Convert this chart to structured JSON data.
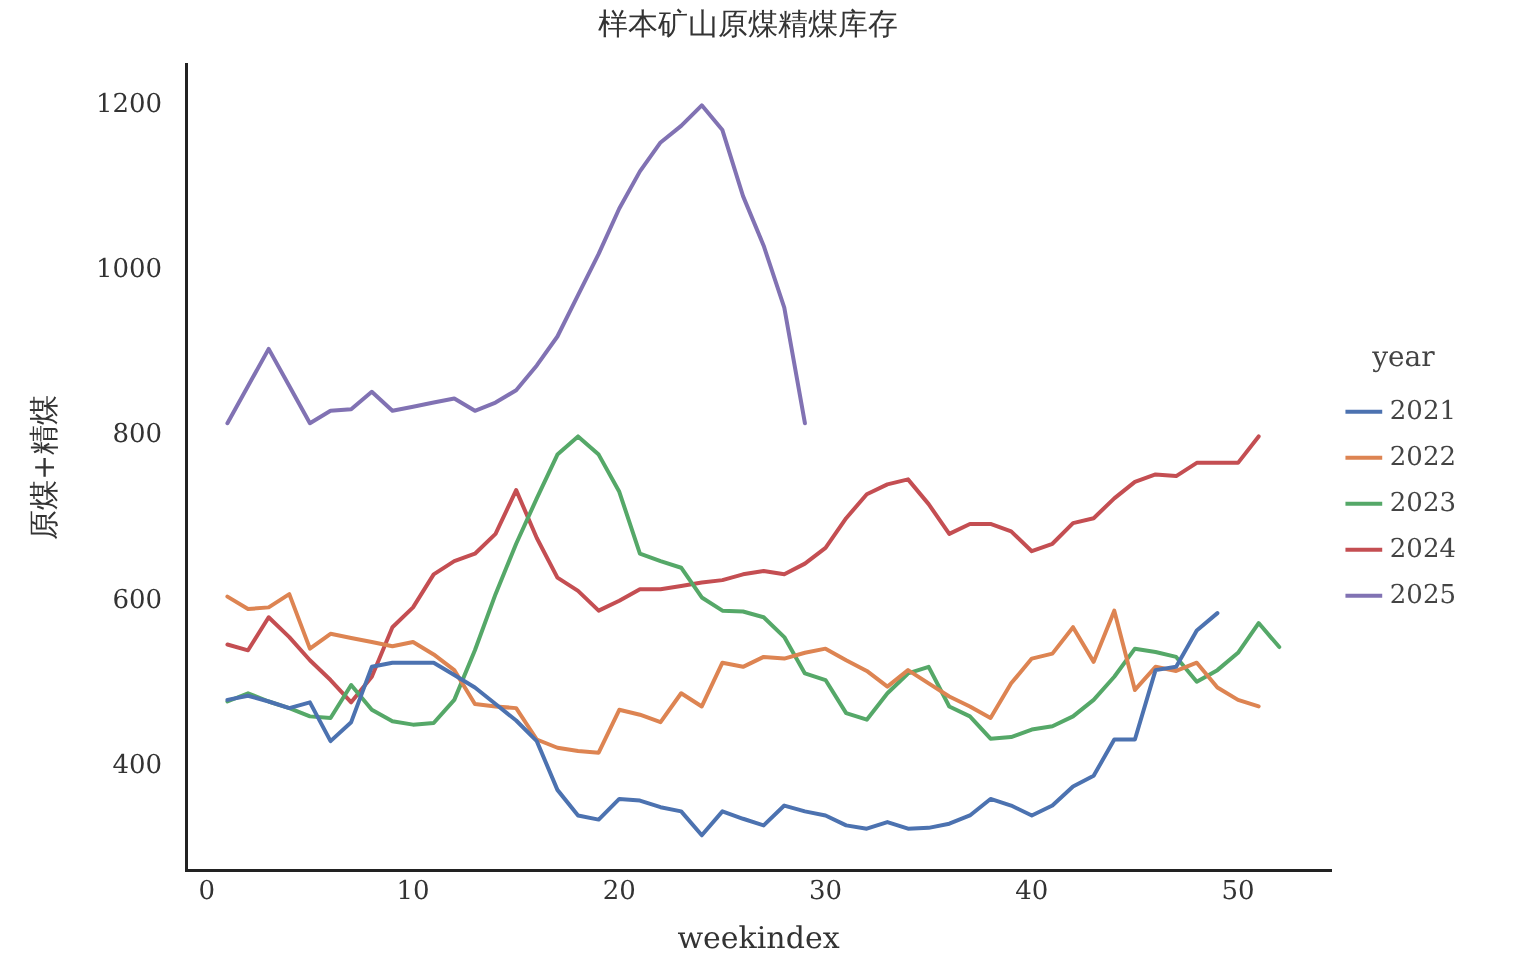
{
  "chart_data": {
    "type": "line",
    "title": "样本矿山原煤精煤库存",
    "xlabel": "weekindex",
    "ylabel": "原煤+精煤",
    "legend_title": "year",
    "x": [
      1,
      2,
      3,
      4,
      5,
      6,
      7,
      8,
      9,
      10,
      11,
      12,
      13,
      14,
      15,
      16,
      17,
      18,
      19,
      20,
      21,
      22,
      23,
      24,
      25,
      26,
      27,
      28,
      29,
      30,
      31,
      32,
      33,
      34,
      35,
      36,
      37,
      38,
      39,
      40,
      41,
      42,
      43,
      44,
      45,
      46,
      47,
      48,
      49,
      50,
      51,
      52
    ],
    "series": [
      {
        "name": "2021",
        "color": "#4c72b0",
        "values": [
          480,
          485,
          478,
          470,
          477,
          430,
          453,
          520,
          525,
          525,
          525,
          510,
          495,
          475,
          455,
          430,
          371,
          340,
          335,
          360,
          358,
          350,
          345,
          316,
          345,
          336,
          328,
          352,
          345,
          340,
          328,
          324,
          332,
          324,
          325,
          330,
          340,
          360,
          352,
          340,
          352,
          375,
          388,
          432,
          432,
          516,
          520,
          564,
          585,
          null,
          null,
          null
        ]
      },
      {
        "name": "2022",
        "color": "#dd8452",
        "values": [
          605,
          590,
          592,
          608,
          542,
          560,
          555,
          550,
          545,
          550,
          535,
          516,
          475,
          472,
          470,
          432,
          422,
          418,
          416,
          468,
          462,
          453,
          488,
          472,
          525,
          520,
          532,
          530,
          537,
          542,
          528,
          515,
          496,
          516,
          500,
          484,
          472,
          458,
          500,
          530,
          536,
          568,
          526,
          588,
          492,
          520,
          515,
          525,
          495,
          480,
          472,
          null
        ]
      },
      {
        "name": "2023",
        "color": "#55a868",
        "values": [
          478,
          488,
          478,
          470,
          460,
          458,
          498,
          468,
          454,
          450,
          452,
          480,
          540,
          608,
          669,
          724,
          777,
          799,
          777,
          732,
          657,
          648,
          640,
          604,
          588,
          587,
          580,
          556,
          512,
          504,
          464,
          456,
          488,
          512,
          520,
          472,
          460,
          433,
          435,
          444,
          448,
          460,
          480,
          508,
          542,
          538,
          532,
          502,
          516,
          537,
          573,
          544
        ]
      },
      {
        "name": "2024",
        "color": "#c44e52",
        "values": [
          547,
          540,
          580,
          556,
          528,
          504,
          477,
          508,
          568,
          592,
          632,
          648,
          657,
          681,
          734,
          676,
          628,
          612,
          588,
          600,
          614,
          614,
          618,
          622,
          625,
          632,
          636,
          632,
          645,
          664,
          700,
          729,
          741,
          747,
          717,
          681,
          693,
          693,
          684,
          660,
          669,
          694,
          700,
          724,
          744,
          753,
          751,
          767,
          767,
          767,
          799,
          null
        ]
      },
      {
        "name": "2025",
        "color": "#8172b3",
        "values": [
          815,
          860,
          905,
          860,
          815,
          830,
          832,
          853,
          830,
          835,
          840,
          845,
          830,
          840,
          855,
          885,
          920,
          970,
          1020,
          1075,
          1120,
          1155,
          1175,
          1200,
          1170,
          1090,
          1030,
          955,
          815,
          null,
          null,
          null,
          null,
          null,
          null,
          null,
          null,
          null,
          null,
          null,
          null,
          null,
          null,
          null,
          null,
          null,
          null,
          null,
          null,
          null,
          null,
          null
        ]
      }
    ],
    "xlim": [
      -1,
      54.5
    ],
    "xticks": [
      0,
      10,
      20,
      30,
      40,
      50
    ],
    "ylim": [
      273,
      1250
    ],
    "yticks": [
      400,
      600,
      800,
      1000,
      1200
    ],
    "grid": false,
    "legend": "right",
    "marker": "none",
    "line_style": "solid"
  }
}
